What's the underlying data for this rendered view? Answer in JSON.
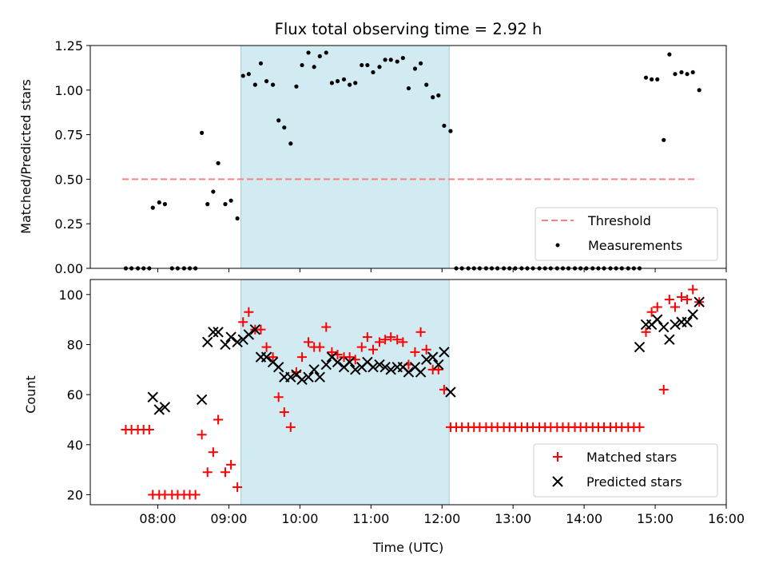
{
  "chart_data": [
    {
      "type": "scatter",
      "title": "Flux total observing time = 2.92 h",
      "xlabel": "",
      "ylabel": "Matched/Predicted stars",
      "ylim": [
        0,
        1.25
      ],
      "yticks": [
        0.0,
        0.25,
        0.5,
        0.75,
        1.0,
        1.25
      ],
      "ytick_labels": [
        "0.00",
        "0.25",
        "0.50",
        "0.75",
        "1.00",
        "1.25"
      ],
      "xlim_hours": [
        7.05,
        16.0
      ],
      "xticks_hours": [
        8,
        9,
        10,
        11,
        12,
        13,
        14,
        15,
        16
      ],
      "shaded_span_hours": [
        9.17,
        12.1
      ],
      "shaded_color": "#add8e6",
      "threshold": {
        "name": "Threshold",
        "value": 0.5,
        "x_range_hours": [
          7.5,
          15.6
        ],
        "color": "#ff7f7f"
      },
      "series": [
        {
          "name": "Measurements",
          "color": "#000000",
          "x_hours": [
            7.55,
            7.63,
            7.72,
            7.8,
            7.88,
            7.93,
            8.02,
            8.1,
            8.2,
            8.28,
            8.37,
            8.45,
            8.53,
            8.62,
            8.7,
            8.78,
            8.85,
            8.95,
            9.03,
            9.12,
            9.2,
            9.28,
            9.37,
            9.45,
            9.53,
            9.62,
            9.7,
            9.78,
            9.87,
            9.95,
            10.03,
            10.12,
            10.2,
            10.28,
            10.37,
            10.45,
            10.53,
            10.62,
            10.7,
            10.78,
            10.87,
            10.95,
            11.03,
            11.12,
            11.2,
            11.28,
            11.37,
            11.45,
            11.53,
            11.62,
            11.7,
            11.78,
            11.87,
            11.95,
            12.03,
            12.12,
            12.2,
            12.28,
            12.37,
            12.45,
            12.53,
            12.62,
            12.7,
            12.78,
            12.87,
            12.95,
            13.03,
            13.12,
            13.2,
            13.28,
            13.37,
            13.45,
            13.53,
            13.62,
            13.7,
            13.78,
            13.87,
            13.95,
            14.03,
            14.12,
            14.2,
            14.28,
            14.37,
            14.45,
            14.53,
            14.62,
            14.7,
            14.78,
            14.87,
            14.95,
            15.03,
            15.12,
            15.2,
            15.28,
            15.37,
            15.45,
            15.53,
            15.62
          ],
          "y": [
            0.0,
            0.0,
            0.0,
            0.0,
            0.0,
            0.34,
            0.37,
            0.36,
            0.0,
            0.0,
            0.0,
            0.0,
            0.0,
            0.76,
            0.36,
            0.43,
            0.59,
            0.36,
            0.38,
            0.28,
            1.08,
            1.09,
            1.03,
            1.15,
            1.05,
            1.03,
            0.83,
            0.79,
            0.7,
            1.02,
            1.14,
            1.21,
            1.13,
            1.19,
            1.21,
            1.04,
            1.05,
            1.06,
            1.03,
            1.04,
            1.14,
            1.14,
            1.1,
            1.13,
            1.17,
            1.17,
            1.16,
            1.18,
            1.01,
            1.12,
            1.15,
            1.03,
            0.96,
            0.97,
            0.8,
            0.77,
            0.0,
            0.0,
            0.0,
            0.0,
            0.0,
            0.0,
            0.0,
            0.0,
            0.0,
            0.0,
            0.0,
            0.0,
            0.0,
            0.0,
            0.0,
            0.0,
            0.0,
            0.0,
            0.0,
            0.0,
            0.0,
            0.0,
            0.0,
            0.0,
            0.0,
            0.0,
            0.0,
            0.0,
            0.0,
            0.0,
            0.0,
            0.0,
            1.07,
            1.06,
            1.06,
            0.72,
            1.2,
            1.09,
            1.1,
            1.09,
            1.1,
            1.0
          ]
        }
      ],
      "legend": {
        "placement": "lower-right",
        "entries": [
          "Threshold",
          "Measurements"
        ]
      }
    },
    {
      "type": "scatter",
      "title": "",
      "xlabel": "Time (UTC)",
      "ylabel": "Count",
      "ylim": [
        16,
        106
      ],
      "yticks": [
        20,
        40,
        60,
        80,
        100
      ],
      "ytick_labels": [
        "20",
        "40",
        "60",
        "80",
        "100"
      ],
      "xlim_hours": [
        7.05,
        16.0
      ],
      "xticks_hours": [
        8,
        9,
        10,
        11,
        12,
        13,
        14,
        15,
        16
      ],
      "xtick_labels": [
        "08:00",
        "09:00",
        "10:00",
        "11:00",
        "12:00",
        "13:00",
        "14:00",
        "15:00",
        "16:00"
      ],
      "shaded_span_hours": [
        9.17,
        12.1
      ],
      "shaded_color": "#add8e6",
      "series": [
        {
          "name": "Matched stars",
          "marker": "plus",
          "color": "#ff0000",
          "x_hours": [
            7.55,
            7.63,
            7.72,
            7.8,
            7.88,
            7.93,
            8.02,
            8.1,
            8.2,
            8.28,
            8.37,
            8.45,
            8.53,
            8.62,
            8.7,
            8.78,
            8.85,
            8.95,
            9.03,
            9.12,
            9.2,
            9.28,
            9.37,
            9.45,
            9.53,
            9.62,
            9.7,
            9.78,
            9.87,
            9.95,
            10.03,
            10.12,
            10.2,
            10.28,
            10.37,
            10.45,
            10.53,
            10.62,
            10.7,
            10.78,
            10.87,
            10.95,
            11.03,
            11.12,
            11.2,
            11.28,
            11.37,
            11.45,
            11.53,
            11.62,
            11.7,
            11.78,
            11.87,
            11.95,
            12.03,
            12.12,
            12.2,
            12.28,
            12.37,
            12.45,
            12.53,
            12.62,
            12.7,
            12.78,
            12.87,
            12.95,
            13.03,
            13.12,
            13.2,
            13.28,
            13.37,
            13.45,
            13.53,
            13.62,
            13.7,
            13.78,
            13.87,
            13.95,
            14.03,
            14.12,
            14.2,
            14.28,
            14.37,
            14.45,
            14.53,
            14.62,
            14.7,
            14.78,
            14.87,
            14.95,
            15.03,
            15.12,
            15.2,
            15.28,
            15.37,
            15.45,
            15.53,
            15.62
          ],
          "y": [
            46,
            46,
            46,
            46,
            46,
            20,
            20,
            20,
            20,
            20,
            20,
            20,
            20,
            44,
            29,
            37,
            50,
            29,
            32,
            23,
            89,
            93,
            86,
            86,
            79,
            75,
            59,
            53,
            47,
            69,
            75,
            81,
            79,
            79,
            87,
            77,
            76,
            75,
            75,
            74,
            79,
            83,
            78,
            81,
            82,
            83,
            82,
            81,
            72,
            77,
            85,
            78,
            70,
            70,
            62,
            47,
            47,
            47,
            47,
            47,
            47,
            47,
            47,
            47,
            47,
            47,
            47,
            47,
            47,
            47,
            47,
            47,
            47,
            47,
            47,
            47,
            47,
            47,
            47,
            47,
            47,
            47,
            47,
            47,
            47,
            47,
            47,
            47,
            85,
            93,
            95,
            62,
            98,
            95,
            99,
            98,
            102,
            97
          ]
        },
        {
          "name": "Predicted stars",
          "marker": "x",
          "color": "#000000",
          "x_hours": [
            7.93,
            8.02,
            8.1,
            8.62,
            8.7,
            8.78,
            8.85,
            8.95,
            9.03,
            9.12,
            9.2,
            9.28,
            9.37,
            9.45,
            9.53,
            9.62,
            9.7,
            9.78,
            9.87,
            9.95,
            10.03,
            10.12,
            10.2,
            10.28,
            10.37,
            10.45,
            10.53,
            10.62,
            10.7,
            10.78,
            10.87,
            10.95,
            11.03,
            11.12,
            11.2,
            11.28,
            11.37,
            11.45,
            11.53,
            11.62,
            11.7,
            11.78,
            11.87,
            11.95,
            12.03,
            12.12,
            14.78,
            14.87,
            14.95,
            15.03,
            15.12,
            15.2,
            15.28,
            15.37,
            15.45,
            15.53,
            15.62
          ],
          "y": [
            59,
            54,
            55,
            58,
            81,
            85,
            85,
            80,
            83,
            81,
            82,
            84,
            86,
            75,
            75,
            73,
            71,
            67,
            67,
            68,
            66,
            67,
            70,
            67,
            72,
            75,
            73,
            71,
            73,
            70,
            71,
            73,
            71,
            72,
            71,
            70,
            71,
            71,
            69,
            71,
            69,
            74,
            75,
            72,
            77,
            61,
            79,
            88,
            88,
            90,
            87,
            82,
            88,
            89,
            89,
            92,
            97
          ]
        }
      ],
      "legend": {
        "placement": "lower-right",
        "entries": [
          "Matched stars",
          "Predicted stars"
        ]
      }
    }
  ]
}
